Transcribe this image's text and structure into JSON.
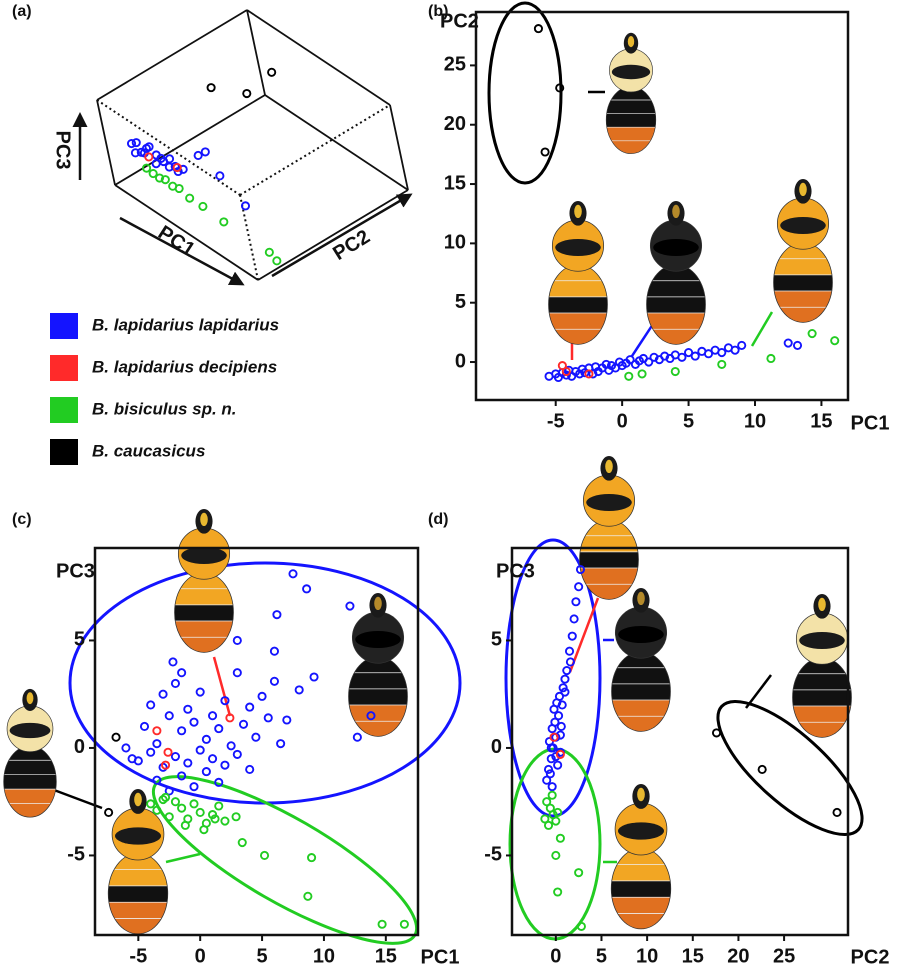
{
  "chart_data": [
    {
      "type": "scatter3d",
      "label": "(a)",
      "xlabel": "PC1",
      "ylabel": "PC2",
      "zlabel": "PC3",
      "xlim": [
        -8,
        17
      ],
      "ylim": [
        -3,
        29
      ],
      "zlim": [
        -9,
        9
      ],
      "series": [
        {
          "name": "B. lapidarius lapidarius",
          "color": "#1414ff",
          "x": [
            -5,
            -4,
            -3,
            -2,
            -1,
            0,
            1,
            2,
            3,
            -4.5,
            -3.5,
            -2.5,
            -1.5,
            -0.5,
            0.5,
            1.5,
            6,
            7.5,
            9,
            12.7
          ],
          "y": [
            -1,
            -1,
            -0.8,
            -0.6,
            -0.5,
            -0.3,
            0,
            0.2,
            0.3,
            -1.1,
            -0.9,
            -0.7,
            -0.4,
            -0.2,
            0.1,
            0.3,
            0.9,
            1,
            1.4,
            1.6
          ],
          "z": [
            1,
            2,
            0.5,
            2.5,
            1.5,
            0.8,
            2,
            0,
            1.2,
            -0.5,
            0.3,
            1.8,
            -0.8,
            1,
            -0.2,
            0.6,
            6.2,
            8.1,
            4,
            0.5
          ]
        },
        {
          "name": "B. lapidarius decipiens",
          "color": "#ff2a2a",
          "x": [
            -2.6,
            2.4
          ],
          "y": [
            -0.5,
            -0.2
          ],
          "z": [
            -0.2,
            1.4
          ]
        },
        {
          "name": "B. bisiculus sp. n.",
          "color": "#22cc22",
          "x": [
            -3,
            -2,
            -1,
            0,
            1,
            2,
            3.4,
            5.2,
            9,
            14.7,
            16.5
          ],
          "y": [
            -1,
            -0.9,
            -0.8,
            -0.7,
            -0.5,
            -0.3,
            0,
            0.5,
            0.3,
            2.4,
            1.8
          ],
          "z": [
            -2.6,
            -3,
            -3.2,
            -2.8,
            -3.5,
            -3.3,
            -4.4,
            -5,
            -5.1,
            -8.2,
            -8.2
          ]
        },
        {
          "name": "B. caucasicus",
          "color": "#000000",
          "x": [
            -6.5,
            -5.3,
            -4.7
          ],
          "y": [
            17.7,
            23.1,
            28.1
          ],
          "z": [
            0.5,
            -3.0,
            -1
          ]
        }
      ]
    },
    {
      "type": "scatter",
      "label": "(b)",
      "xlabel": "PC1",
      "ylabel": "PC2",
      "xlim": [
        -11,
        17
      ],
      "ylim": [
        -3.2,
        29.5
      ],
      "xticks": [
        -5,
        0,
        5,
        10,
        15
      ],
      "yticks": [
        0,
        5,
        10,
        15,
        20,
        25
      ],
      "series": [
        {
          "color": "#1414ff",
          "x": [
            -5.5,
            -5,
            -4.8,
            -4.5,
            -4.2,
            -4,
            -3.8,
            -3.5,
            -3.2,
            -3,
            -2.8,
            -2.5,
            -2.2,
            -2,
            -1.8,
            -1.5,
            -1.2,
            -1,
            -0.8,
            -0.5,
            -0.2,
            0,
            0.3,
            0.6,
            1,
            1.3,
            1.6,
            2,
            2.4,
            2.8,
            3.2,
            3.6,
            4,
            4.5,
            5,
            5.5,
            6,
            6.5,
            7,
            7.5,
            8,
            8.5,
            9,
            12.5,
            13.2
          ],
          "y": [
            -1.2,
            -1.0,
            -1.3,
            -0.9,
            -1.1,
            -0.7,
            -1.2,
            -0.8,
            -1.0,
            -0.6,
            -0.9,
            -0.5,
            -1.0,
            -0.4,
            -0.8,
            -0.5,
            -0.2,
            -0.7,
            -0.3,
            -0.5,
            0.0,
            -0.3,
            -0.1,
            0.2,
            -0.2,
            0.1,
            0.3,
            0.0,
            0.4,
            0.2,
            0.5,
            0.3,
            0.6,
            0.4,
            0.8,
            0.5,
            0.9,
            0.7,
            1.0,
            0.8,
            1.2,
            1.0,
            1.4,
            1.6,
            1.4
          ]
        },
        {
          "color": "#ff2a2a",
          "x": [
            -4.5,
            -4.2,
            -2.5
          ],
          "y": [
            -0.3,
            -0.8,
            -1
          ]
        },
        {
          "color": "#22cc22",
          "x": [
            0.5,
            1.5,
            4,
            7.5,
            11.2,
            14.3,
            16
          ],
          "y": [
            -1.2,
            -1,
            -0.8,
            -0.2,
            0.3,
            2.4,
            1.8
          ]
        },
        {
          "color": "#000000",
          "x": [
            -6.3,
            -4.7,
            -5.8
          ],
          "y": [
            28.1,
            23.1,
            17.7
          ]
        }
      ]
    },
    {
      "type": "scatter",
      "label": "(c)",
      "xlabel": "PC1",
      "ylabel": "PC3",
      "xlim": [
        -8.5,
        17.6
      ],
      "ylim": [
        -8.7,
        9.3
      ],
      "xticks": [
        -5,
        0,
        5,
        10,
        15
      ],
      "yticks": [
        -5,
        0,
        5
      ],
      "series": [
        {
          "color": "#1414ff",
          "x": [
            7.5,
            8.6,
            6.2,
            12.1,
            12.7,
            13.8,
            -2.2,
            -1.5,
            -4,
            -3,
            -2,
            -1,
            0,
            1,
            2,
            3,
            4,
            5,
            6,
            7,
            8,
            -5.5,
            -4.5,
            -3.5,
            -2.5,
            -1.5,
            -0.5,
            0.5,
            1.5,
            2.5,
            3.5,
            4.5,
            5.5,
            6.5,
            -5,
            -4,
            -3,
            -2,
            -1,
            0,
            1,
            2,
            3,
            4,
            -3.5,
            -2.5,
            -1.5,
            -0.5,
            0.5,
            1.5,
            9.2,
            6,
            -6,
            3
          ],
          "y": [
            8.1,
            7.4,
            6.2,
            6.6,
            0.5,
            1.5,
            4,
            3.5,
            2,
            2.5,
            3,
            1.8,
            2.6,
            1.5,
            2.2,
            3.5,
            1.9,
            2.4,
            3.1,
            1.3,
            2.7,
            -0.5,
            1,
            0.2,
            1.5,
            0.8,
            1.2,
            0.4,
            0.9,
            0.1,
            1.1,
            0.5,
            1.4,
            0.2,
            -0.6,
            -0.2,
            -0.9,
            -0.4,
            -0.7,
            -0.1,
            -0.5,
            -0.8,
            -0.3,
            -1,
            -1.5,
            -2,
            -1.3,
            -1.8,
            -1.1,
            -1.6,
            3.3,
            4.5,
            0,
            5
          ]
        },
        {
          "color": "#ff2a2a",
          "x": [
            2.4,
            -2.8,
            -2.6,
            -3.5
          ],
          "y": [
            1.4,
            -0.8,
            -0.2,
            0.8
          ]
        },
        {
          "color": "#22cc22",
          "x": [
            -4,
            -3.5,
            -3,
            -2.5,
            -2,
            -1.5,
            -1,
            -0.5,
            0,
            0.5,
            1,
            1.5,
            2,
            -2.8,
            -1.2,
            0.3,
            1.2,
            2.9,
            3.4,
            5.2,
            9,
            8.7,
            14.7,
            16.5
          ],
          "y": [
            -2.6,
            -2.9,
            -2.4,
            -3.2,
            -2.5,
            -2.8,
            -3.3,
            -2.6,
            -3.0,
            -3.5,
            -3.1,
            -2.7,
            -3.4,
            -2.3,
            -3.6,
            -3.8,
            -3.3,
            -3.2,
            -4.4,
            -5,
            -5.1,
            -6.9,
            -8.2,
            -8.2
          ]
        },
        {
          "color": "#000000",
          "x": [
            -6.8,
            -7.4
          ],
          "y": [
            0.5,
            -3.0
          ]
        }
      ]
    },
    {
      "type": "scatter",
      "label": "(d)",
      "xlabel": "PC2",
      "ylabel": "PC3",
      "xlim": [
        -4.8,
        32
      ],
      "ylim": [
        -8.7,
        9.3
      ],
      "xticks": [
        0,
        5,
        10,
        15,
        20,
        25
      ],
      "yticks": [
        -5,
        0,
        5
      ],
      "series": [
        {
          "color": "#1414ff",
          "x": [
            -1,
            -0.8,
            -0.5,
            -0.3,
            0,
            0.2,
            -0.7,
            -0.4,
            -0.1,
            0.3,
            0.5,
            -0.6,
            -0.2,
            0.1,
            0.4,
            0.8,
            1,
            -0.5,
            0,
            0.5,
            1.2,
            0.7,
            1.5,
            1.8,
            2,
            2.2,
            1.6,
            2.5,
            2.7,
            -0.4,
            0.6,
            1
          ],
          "y": [
            -1.5,
            -1,
            -0.5,
            0,
            0.5,
            -0.8,
            0.3,
            0.9,
            1.2,
            1.5,
            -0.2,
            -1.2,
            1.8,
            2.1,
            2.4,
            2.8,
            3.2,
            0,
            -0.4,
            0.6,
            3.6,
            2,
            4.5,
            5.2,
            6,
            6.8,
            4,
            7.5,
            8.3,
            -1.8,
            1,
            2.6
          ]
        },
        {
          "color": "#ff2a2a",
          "x": [
            0.5,
            -0.2
          ],
          "y": [
            -0.3,
            0.5
          ]
        },
        {
          "color": "#22cc22",
          "x": [
            -1,
            -0.6,
            -0.3,
            0,
            -0.8,
            -0.4,
            0.2,
            -1.2,
            0.5,
            0,
            2.5,
            0.2,
            2.8
          ],
          "y": [
            -2.5,
            -2.8,
            -3.1,
            -3.4,
            -3.6,
            -2.2,
            -3.0,
            -3.3,
            -4.2,
            -5.0,
            -5.8,
            -6.7,
            -8.3
          ]
        },
        {
          "color": "#000000",
          "x": [
            17.6,
            22.6,
            30.8
          ],
          "y": [
            0.7,
            -1.0,
            -3.0
          ]
        }
      ]
    }
  ]
}
